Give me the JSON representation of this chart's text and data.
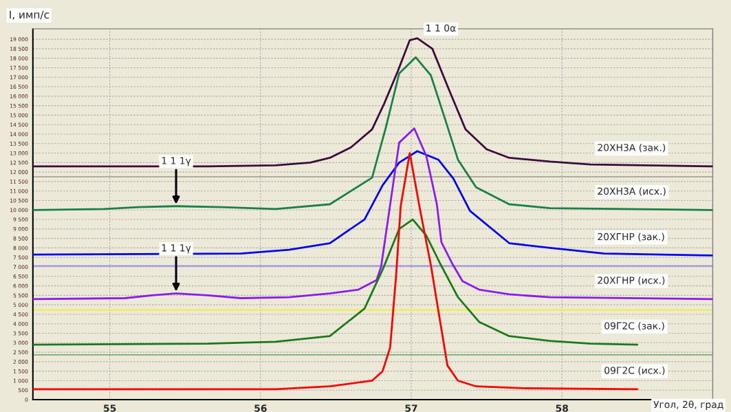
{
  "chart_data": {
    "type": "line",
    "xlabel": "Угол, 2θ, град",
    "ylabel": "I, имп/с",
    "xlim": [
      54.49,
      59.0
    ],
    "xticks": [
      55,
      56,
      57,
      58
    ],
    "ylim": [
      0,
      19550
    ],
    "yticks": [
      {
        "value": 0,
        "label": "0"
      },
      {
        "value": 500,
        "label": "500"
      },
      {
        "value": 1000,
        "label": "1 000"
      },
      {
        "value": 1500,
        "label": "1 500"
      },
      {
        "value": 2000,
        "label": "2 000"
      },
      {
        "value": 2500,
        "label": "2 500"
      },
      {
        "value": 3000,
        "label": "3 000"
      },
      {
        "value": 3500,
        "label": "3 500"
      },
      {
        "value": 4000,
        "label": "4 000"
      },
      {
        "value": 4500,
        "label": "4 500"
      },
      {
        "value": 5000,
        "label": "5 000"
      },
      {
        "value": 5500,
        "label": "5 500"
      },
      {
        "value": 6000,
        "label": "6 000"
      },
      {
        "value": 6500,
        "label": "6 500"
      },
      {
        "value": 7000,
        "label": "7 000"
      },
      {
        "value": 7500,
        "label": "7 500"
      },
      {
        "value": 8000,
        "label": "8 000"
      },
      {
        "value": 8500,
        "label": "8 500"
      },
      {
        "value": 9000,
        "label": "9 000"
      },
      {
        "value": 9500,
        "label": "9 500"
      },
      {
        "value": 10000,
        "label": "10 000"
      },
      {
        "value": 10500,
        "label": "10 500"
      },
      {
        "value": 11000,
        "label": "11 000"
      },
      {
        "value": 11500,
        "label": "11 500"
      },
      {
        "value": 12000,
        "label": "12 000"
      },
      {
        "value": 12500,
        "label": "12 500"
      },
      {
        "value": 13000,
        "label": "13 000"
      },
      {
        "value": 13500,
        "label": "13 500"
      },
      {
        "value": 14000,
        "label": "14 000"
      },
      {
        "value": 14500,
        "label": "14 500"
      },
      {
        "value": 15000,
        "label": "15 000"
      },
      {
        "value": 15500,
        "label": "15 500"
      },
      {
        "value": 16000,
        "label": "16 000"
      },
      {
        "value": 16500,
        "label": "16 500"
      },
      {
        "value": 17000,
        "label": "17 000"
      },
      {
        "value": 17500,
        "label": "17 500"
      },
      {
        "value": 18000,
        "label": "18 000"
      },
      {
        "value": 18500,
        "label": "18 500"
      },
      {
        "value": 19000,
        "label": "19 000"
      }
    ],
    "grid": true,
    "marker": "none",
    "line_style": "solid",
    "legend": false,
    "series": [
      {
        "name": "20ХН3А (зак.)",
        "color": "#3c0a3c",
        "x": [
          54.49,
          55.65,
          56.1,
          56.33,
          56.46,
          56.6,
          56.74,
          56.82,
          56.91,
          56.99,
          57.04,
          57.14,
          57.25,
          57.36,
          57.5,
          57.65,
          57.92,
          58.19,
          59.0
        ],
        "values": [
          12300,
          12300,
          12350,
          12500,
          12750,
          13300,
          14250,
          15600,
          17300,
          18950,
          19050,
          18500,
          16350,
          14250,
          13200,
          12750,
          12550,
          12400,
          12300
        ]
      },
      {
        "name": "20ХН3А (исх.)",
        "color": "#188048",
        "x": [
          54.49,
          54.96,
          55.19,
          55.44,
          55.74,
          56.1,
          56.46,
          56.74,
          56.83,
          56.92,
          57.03,
          57.13,
          57.22,
          57.31,
          57.43,
          57.65,
          57.92,
          59.0
        ],
        "values": [
          10000,
          10050,
          10150,
          10200,
          10150,
          10050,
          10300,
          11700,
          14300,
          17200,
          18050,
          17100,
          14900,
          12650,
          11200,
          10300,
          10100,
          10000
        ]
      },
      {
        "name": "20ХГНР (зак.)",
        "color": "#0000ff",
        "x": [
          54.49,
          55.87,
          56.19,
          56.46,
          56.69,
          56.81,
          56.92,
          57.04,
          57.18,
          57.28,
          57.39,
          57.65,
          57.92,
          58.28,
          59.0
        ],
        "values": [
          7650,
          7700,
          7900,
          8250,
          9500,
          11300,
          12500,
          13100,
          12650,
          11650,
          9950,
          8250,
          8000,
          7700,
          7600
        ]
      },
      {
        "name": "20ХГНР (исх.)",
        "color": "#8b1cf0",
        "x": [
          54.49,
          55.1,
          55.28,
          55.44,
          55.65,
          55.87,
          56.19,
          56.46,
          56.65,
          56.77,
          56.8,
          56.92,
          57.02,
          57.1,
          57.17,
          57.2,
          57.27,
          57.34,
          57.45,
          57.65,
          57.92,
          59.0
        ],
        "values": [
          5300,
          5350,
          5500,
          5600,
          5500,
          5350,
          5400,
          5600,
          5800,
          6300,
          7000,
          13550,
          14300,
          12850,
          10300,
          8300,
          7200,
          6250,
          5800,
          5550,
          5400,
          5300
        ]
      },
      {
        "name": "09Г2С (зак.)",
        "color": "#1a7a1a",
        "x": [
          54.49,
          55.65,
          56.1,
          56.46,
          56.69,
          56.81,
          56.92,
          57.01,
          57.1,
          57.19,
          57.31,
          57.45,
          57.65,
          57.92,
          58.19,
          58.5
        ],
        "values": [
          2900,
          2950,
          3050,
          3350,
          4800,
          6850,
          9000,
          9500,
          8650,
          7200,
          5400,
          4100,
          3350,
          3100,
          2950,
          2900
        ]
      },
      {
        "name": "09Г2С (исх.)",
        "color": "#ff0000",
        "x": [
          54.49,
          56.1,
          56.46,
          56.74,
          56.81,
          56.86,
          56.9,
          56.93,
          56.99,
          57.06,
          57.13,
          57.19,
          57.24,
          57.31,
          57.43,
          57.74,
          58.5
        ],
        "values": [
          550,
          550,
          700,
          1000,
          1500,
          2750,
          6600,
          10200,
          13000,
          9950,
          7100,
          4200,
          1800,
          1000,
          700,
          600,
          550
        ]
      }
    ],
    "ref_lines": [
      {
        "axis": "y",
        "value": 11750,
        "color": "#b0aca0"
      },
      {
        "axis": "y",
        "value": 7050,
        "color": "#8888ee"
      },
      {
        "axis": "y",
        "value": 4730,
        "color": "#f0f020"
      },
      {
        "axis": "y",
        "value": 2360,
        "color": "#70b070"
      }
    ],
    "annotations": [
      "1 1 0α",
      {
        "text": "1 1 1γ",
        "x": 55.44,
        "y": 10200
      },
      {
        "text": "1 1 1γ",
        "x": 55.44,
        "y": 5600
      }
    ]
  }
}
